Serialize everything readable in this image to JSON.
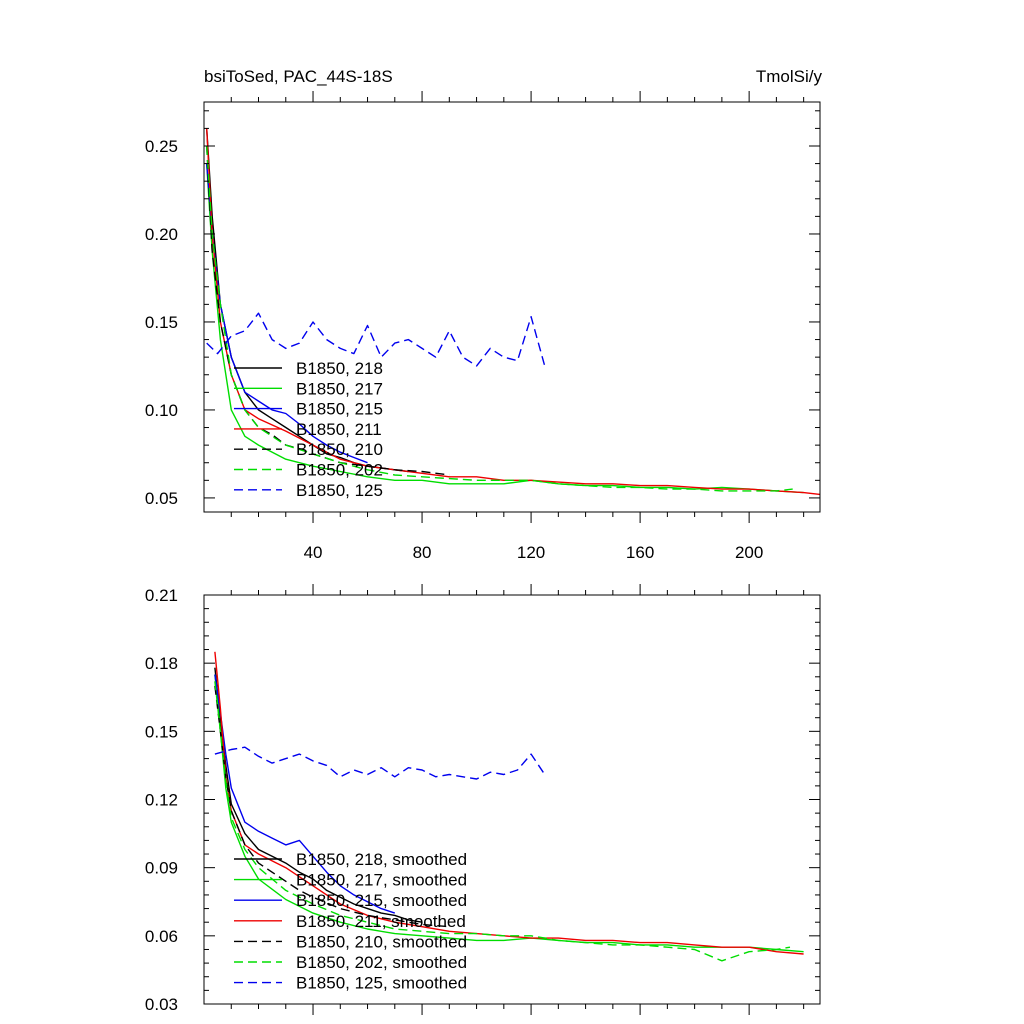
{
  "figure": {
    "title_left": "bsiToSed, PAC_44S-18S",
    "title_right": "TmolSi/y"
  },
  "colors": {
    "black": "#000000",
    "green": "#00dd00",
    "blue": "#0000ee",
    "red": "#ee0000"
  },
  "chart_data": [
    {
      "type": "line",
      "xlim": [
        0,
        226
      ],
      "ylim": [
        0.042,
        0.275
      ],
      "x_ticks": [
        40,
        80,
        120,
        160,
        200
      ],
      "x_tick_labels": [
        "40",
        "80",
        "120",
        "160",
        "200"
      ],
      "y_ticks": [
        0.05,
        0.1,
        0.15,
        0.2,
        0.25
      ],
      "y_tick_labels": [
        "0.05",
        "0.10",
        "0.15",
        "0.20",
        "0.25"
      ],
      "legend_position": "lower-left",
      "series": [
        {
          "name": "B1850, 218",
          "color": "#000000",
          "dash": "solid",
          "x": [
            1,
            3,
            6,
            10,
            15,
            20,
            25,
            30,
            35,
            40,
            45,
            50,
            55,
            60,
            65,
            70,
            75
          ],
          "y": [
            0.26,
            0.21,
            0.16,
            0.13,
            0.11,
            0.1,
            0.095,
            0.09,
            0.085,
            0.08,
            0.075,
            0.073,
            0.07,
            0.068,
            0.067,
            0.066,
            0.065
          ]
        },
        {
          "name": "B1850, 217",
          "color": "#00dd00",
          "dash": "solid",
          "x": [
            1,
            3,
            6,
            10,
            15,
            20,
            30,
            40,
            50,
            60,
            70,
            80,
            90,
            100,
            110,
            120,
            130,
            140,
            150,
            160,
            170,
            180,
            190,
            200,
            210,
            220
          ],
          "y": [
            0.24,
            0.19,
            0.14,
            0.1,
            0.085,
            0.08,
            0.072,
            0.068,
            0.065,
            0.062,
            0.06,
            0.06,
            0.058,
            0.058,
            0.058,
            0.06,
            0.058,
            0.057,
            0.057,
            0.056,
            0.056,
            0.055,
            0.056,
            0.055,
            0.054,
            0.053
          ]
        },
        {
          "name": "B1850, 215",
          "color": "#0000ee",
          "dash": "solid",
          "x": [
            1,
            3,
            6,
            10,
            15,
            20,
            25,
            30,
            35,
            40,
            45,
            50,
            55,
            60
          ],
          "y": [
            0.24,
            0.2,
            0.16,
            0.13,
            0.11,
            0.105,
            0.1,
            0.098,
            0.092,
            0.085,
            0.08,
            0.076,
            0.073,
            0.07
          ]
        },
        {
          "name": "B1850, 211",
          "color": "#ee0000",
          "dash": "solid",
          "x": [
            1,
            3,
            6,
            10,
            15,
            20,
            30,
            40,
            50,
            60,
            70,
            80,
            90,
            100,
            110,
            120,
            130,
            140,
            150,
            160,
            170,
            180,
            190,
            200,
            210,
            220,
            226
          ],
          "y": [
            0.26,
            0.2,
            0.15,
            0.12,
            0.1,
            0.095,
            0.088,
            0.08,
            0.072,
            0.068,
            0.066,
            0.064,
            0.062,
            0.062,
            0.06,
            0.06,
            0.059,
            0.058,
            0.058,
            0.057,
            0.057,
            0.056,
            0.055,
            0.055,
            0.054,
            0.053,
            0.052
          ]
        },
        {
          "name": "B1850, 210",
          "color": "#000000",
          "dash": "dashed",
          "x": [
            1,
            3,
            6,
            10,
            15,
            20,
            25,
            30,
            35,
            40,
            50,
            60,
            70,
            80,
            90
          ],
          "y": [
            0.25,
            0.19,
            0.15,
            0.12,
            0.1,
            0.09,
            0.086,
            0.08,
            0.078,
            0.075,
            0.07,
            0.068,
            0.066,
            0.065,
            0.063
          ]
        },
        {
          "name": "B1850, 202",
          "color": "#00dd00",
          "dash": "dashed",
          "x": [
            1,
            3,
            6,
            10,
            15,
            20,
            30,
            40,
            50,
            60,
            70,
            80,
            90,
            100,
            110,
            120,
            130,
            140,
            150,
            160,
            170,
            180,
            190,
            200,
            210,
            216
          ],
          "y": [
            0.25,
            0.2,
            0.16,
            0.12,
            0.1,
            0.09,
            0.08,
            0.075,
            0.07,
            0.066,
            0.063,
            0.062,
            0.061,
            0.06,
            0.06,
            0.06,
            0.058,
            0.057,
            0.056,
            0.056,
            0.055,
            0.055,
            0.054,
            0.054,
            0.054,
            0.055
          ]
        },
        {
          "name": "B1850, 125",
          "color": "#0000ee",
          "dash": "dashed",
          "x": [
            1,
            5,
            10,
            15,
            20,
            25,
            30,
            35,
            40,
            45,
            50,
            55,
            60,
            65,
            70,
            75,
            80,
            85,
            90,
            95,
            100,
            105,
            110,
            115,
            120,
            125
          ],
          "y": [
            0.138,
            0.132,
            0.142,
            0.145,
            0.155,
            0.14,
            0.135,
            0.138,
            0.15,
            0.14,
            0.135,
            0.132,
            0.148,
            0.13,
            0.138,
            0.14,
            0.135,
            0.13,
            0.145,
            0.13,
            0.125,
            0.135,
            0.13,
            0.128,
            0.153,
            0.125
          ]
        }
      ]
    },
    {
      "type": "line",
      "xlim": [
        0,
        226
      ],
      "ylim": [
        0.03,
        0.21
      ],
      "x_ticks": [
        40,
        80,
        120,
        160,
        200
      ],
      "x_tick_labels": [],
      "y_ticks": [
        0.03,
        0.06,
        0.09,
        0.12,
        0.15,
        0.18,
        0.21
      ],
      "y_tick_labels": [
        "0.03",
        "0.06",
        "0.09",
        "0.12",
        "0.15",
        "0.18",
        "0.21"
      ],
      "legend_position": "lower-left",
      "series": [
        {
          "name": "B1850, 218, smoothed",
          "color": "#000000",
          "dash": "solid",
          "x": [
            4,
            6,
            8,
            10,
            15,
            20,
            25,
            30,
            35,
            40,
            45,
            50,
            55,
            60,
            65,
            70,
            75,
            80
          ],
          "y": [
            0.178,
            0.155,
            0.135,
            0.118,
            0.105,
            0.098,
            0.095,
            0.092,
            0.088,
            0.085,
            0.08,
            0.077,
            0.074,
            0.072,
            0.07,
            0.069,
            0.067,
            0.066
          ]
        },
        {
          "name": "B1850, 217, smoothed",
          "color": "#00dd00",
          "dash": "solid",
          "x": [
            4,
            6,
            8,
            10,
            15,
            20,
            30,
            40,
            50,
            60,
            70,
            80,
            90,
            100,
            110,
            120,
            130,
            140,
            150,
            160,
            170,
            180,
            190,
            200,
            210,
            220
          ],
          "y": [
            0.175,
            0.15,
            0.125,
            0.11,
            0.095,
            0.085,
            0.076,
            0.07,
            0.066,
            0.063,
            0.061,
            0.06,
            0.059,
            0.058,
            0.058,
            0.059,
            0.058,
            0.057,
            0.057,
            0.056,
            0.056,
            0.055,
            0.055,
            0.055,
            0.054,
            0.053
          ]
        },
        {
          "name": "B1850, 215, smoothed",
          "color": "#0000ee",
          "dash": "solid",
          "x": [
            4,
            6,
            8,
            10,
            15,
            20,
            25,
            30,
            35,
            40,
            45,
            50,
            55,
            60,
            65,
            70
          ],
          "y": [
            0.175,
            0.158,
            0.14,
            0.125,
            0.11,
            0.106,
            0.103,
            0.1,
            0.102,
            0.095,
            0.088,
            0.082,
            0.078,
            0.075,
            0.072,
            0.07
          ]
        },
        {
          "name": "B1850, 211, smoothed",
          "color": "#ee0000",
          "dash": "solid",
          "x": [
            4,
            6,
            8,
            10,
            15,
            20,
            30,
            40,
            50,
            60,
            70,
            80,
            90,
            100,
            110,
            120,
            130,
            140,
            150,
            160,
            170,
            180,
            190,
            200,
            210,
            220
          ],
          "y": [
            0.185,
            0.16,
            0.13,
            0.115,
            0.1,
            0.096,
            0.09,
            0.082,
            0.074,
            0.069,
            0.066,
            0.064,
            0.062,
            0.061,
            0.06,
            0.059,
            0.059,
            0.058,
            0.058,
            0.057,
            0.057,
            0.056,
            0.055,
            0.055,
            0.053,
            0.052
          ]
        },
        {
          "name": "B1850, 210, smoothed",
          "color": "#000000",
          "dash": "dashed",
          "x": [
            4,
            6,
            8,
            10,
            15,
            20,
            25,
            30,
            35,
            40,
            50,
            60,
            70,
            80,
            90
          ],
          "y": [
            0.17,
            0.15,
            0.13,
            0.115,
            0.1,
            0.092,
            0.088,
            0.084,
            0.08,
            0.077,
            0.072,
            0.069,
            0.067,
            0.065,
            0.064
          ]
        },
        {
          "name": "B1850, 202, smoothed",
          "color": "#00dd00",
          "dash": "dashed",
          "x": [
            4,
            6,
            8,
            10,
            15,
            20,
            30,
            40,
            50,
            60,
            70,
            80,
            90,
            100,
            110,
            120,
            130,
            140,
            150,
            160,
            170,
            180,
            190,
            200,
            210,
            215
          ],
          "y": [
            0.172,
            0.15,
            0.128,
            0.112,
            0.098,
            0.09,
            0.08,
            0.074,
            0.069,
            0.066,
            0.063,
            0.062,
            0.061,
            0.061,
            0.06,
            0.06,
            0.058,
            0.057,
            0.056,
            0.056,
            0.055,
            0.054,
            0.049,
            0.053,
            0.054,
            0.055
          ]
        },
        {
          "name": "B1850, 125, smoothed",
          "color": "#0000ee",
          "dash": "dashed",
          "x": [
            4,
            10,
            15,
            20,
            25,
            30,
            35,
            40,
            45,
            50,
            55,
            60,
            65,
            70,
            75,
            80,
            85,
            90,
            95,
            100,
            105,
            110,
            115,
            120,
            125
          ],
          "y": [
            0.14,
            0.142,
            0.143,
            0.139,
            0.136,
            0.138,
            0.14,
            0.137,
            0.135,
            0.13,
            0.133,
            0.131,
            0.134,
            0.13,
            0.134,
            0.133,
            0.13,
            0.131,
            0.13,
            0.129,
            0.132,
            0.131,
            0.133,
            0.14,
            0.131
          ]
        }
      ]
    }
  ]
}
